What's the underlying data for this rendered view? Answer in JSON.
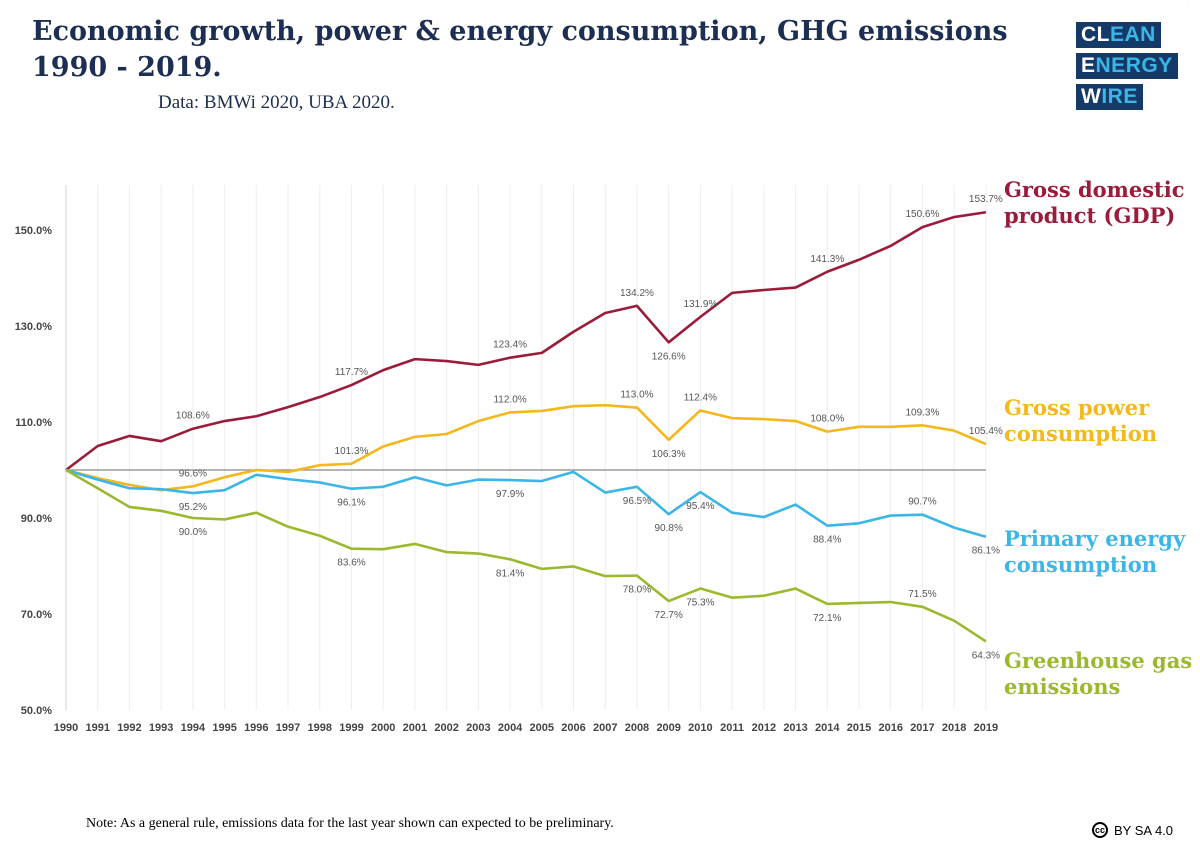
{
  "header": {
    "title": "Economic growth, power & energy consumption, GHG emissions 1990 - 2019.",
    "source": "Data: BMWi 2020, UBA 2020.",
    "logo": {
      "line1": "CLEAN",
      "line2": "ENERGY",
      "line3": "WIRE"
    }
  },
  "note": "Note: As a general rule, emissions data for the last year shown can expected to be preliminary.",
  "license": {
    "icon": "cc",
    "text": "BY SA 4.0"
  },
  "chart_data": {
    "type": "line",
    "title": "Economic growth, power & energy consumption, GHG emissions 1990 - 2019.",
    "xlabel": "",
    "ylabel": "",
    "ylim": [
      50,
      160
    ],
    "yticks": [
      "50.0%",
      "70.0%",
      "90.0%",
      "110.0%",
      "130.0%",
      "150.0%"
    ],
    "ytick_values": [
      50,
      70,
      90,
      110,
      130,
      150
    ],
    "baseline": 100,
    "x": [
      1990,
      1991,
      1992,
      1993,
      1994,
      1995,
      1996,
      1997,
      1998,
      1999,
      2000,
      2001,
      2002,
      2003,
      2004,
      2005,
      2006,
      2007,
      2008,
      2009,
      2010,
      2011,
      2012,
      2013,
      2014,
      2015,
      2016,
      2017,
      2018,
      2019
    ],
    "series": [
      {
        "name": "Gross domestic product (GDP)",
        "color": "#9b1b3a",
        "values": [
          100,
          105.0,
          107.1,
          106.0,
          108.6,
          110.2,
          111.2,
          113.1,
          115.2,
          117.7,
          120.8,
          123.1,
          122.7,
          121.9,
          123.4,
          124.4,
          128.8,
          132.7,
          134.2,
          126.6,
          131.9,
          136.9,
          137.5,
          138.0,
          141.3,
          143.8,
          146.7,
          150.6,
          152.7,
          153.7
        ],
        "labels": [
          {
            "year": 1994,
            "text": "108.6%",
            "pos": "above"
          },
          {
            "year": 1999,
            "text": "117.7%",
            "pos": "above"
          },
          {
            "year": 2004,
            "text": "123.4%",
            "pos": "above"
          },
          {
            "year": 2008,
            "text": "134.2%",
            "pos": "above"
          },
          {
            "year": 2009,
            "text": "126.6%",
            "pos": "below"
          },
          {
            "year": 2010,
            "text": "131.9%",
            "pos": "above"
          },
          {
            "year": 2014,
            "text": "141.3%",
            "pos": "above"
          },
          {
            "year": 2017,
            "text": "150.6%",
            "pos": "above"
          },
          {
            "year": 2019,
            "text": "153.7%",
            "pos": "above"
          }
        ]
      },
      {
        "name": "Gross power consumption",
        "color": "#f4b71c",
        "values": [
          100,
          98.3,
          96.9,
          95.8,
          96.6,
          98.5,
          100.0,
          99.6,
          101.0,
          101.3,
          104.9,
          106.9,
          107.5,
          110.2,
          112.0,
          112.3,
          113.3,
          113.5,
          113.0,
          106.3,
          112.4,
          110.8,
          110.6,
          110.2,
          108.0,
          109.0,
          109.0,
          109.3,
          108.2,
          105.4
        ],
        "labels": [
          {
            "year": 1994,
            "text": "96.6%",
            "pos": "above"
          },
          {
            "year": 1999,
            "text": "101.3%",
            "pos": "above"
          },
          {
            "year": 2004,
            "text": "112.0%",
            "pos": "above"
          },
          {
            "year": 2008,
            "text": "113.0%",
            "pos": "above"
          },
          {
            "year": 2009,
            "text": "106.3%",
            "pos": "below"
          },
          {
            "year": 2010,
            "text": "112.4%",
            "pos": "above"
          },
          {
            "year": 2014,
            "text": "108.0%",
            "pos": "above"
          },
          {
            "year": 2017,
            "text": "109.3%",
            "pos": "above"
          },
          {
            "year": 2019,
            "text": "105.4%",
            "pos": "above"
          }
        ]
      },
      {
        "name": "Primary energy consumption",
        "color": "#3bb6e6",
        "values": [
          100,
          98.0,
          96.2,
          96.0,
          95.2,
          95.8,
          99.0,
          98.1,
          97.4,
          96.1,
          96.5,
          98.5,
          96.8,
          98.0,
          97.9,
          97.7,
          99.6,
          95.3,
          96.5,
          90.8,
          95.4,
          91.1,
          90.2,
          92.8,
          88.4,
          88.9,
          90.5,
          90.7,
          88.0,
          86.1
        ],
        "labels": [
          {
            "year": 1994,
            "text": "95.2%",
            "pos": "below"
          },
          {
            "year": 1999,
            "text": "96.1%",
            "pos": "below"
          },
          {
            "year": 2004,
            "text": "97.9%",
            "pos": "below"
          },
          {
            "year": 2008,
            "text": "96.5%",
            "pos": "below"
          },
          {
            "year": 2009,
            "text": "90.8%",
            "pos": "below"
          },
          {
            "year": 2010,
            "text": "95.4%",
            "pos": "below"
          },
          {
            "year": 2014,
            "text": "88.4%",
            "pos": "below"
          },
          {
            "year": 2017,
            "text": "90.7%",
            "pos": "above"
          },
          {
            "year": 2019,
            "text": "86.1%",
            "pos": "below"
          }
        ]
      },
      {
        "name": "Greenhouse gas emissions",
        "color": "#9ab92e",
        "values": [
          100,
          96.2,
          92.3,
          91.5,
          90.0,
          89.7,
          91.1,
          88.2,
          86.3,
          83.6,
          83.5,
          84.6,
          82.9,
          82.6,
          81.4,
          79.4,
          79.9,
          77.9,
          78.0,
          72.7,
          75.3,
          73.4,
          73.8,
          75.3,
          72.1,
          72.3,
          72.5,
          71.5,
          68.6,
          64.3
        ],
        "labels": [
          {
            "year": 1994,
            "text": "90.0%",
            "pos": "below"
          },
          {
            "year": 1999,
            "text": "83.6%",
            "pos": "below"
          },
          {
            "year": 2004,
            "text": "81.4%",
            "pos": "below"
          },
          {
            "year": 2008,
            "text": "78.0%",
            "pos": "below"
          },
          {
            "year": 2009,
            "text": "72.7%",
            "pos": "below"
          },
          {
            "year": 2010,
            "text": "75.3%",
            "pos": "below"
          },
          {
            "year": 2014,
            "text": "72.1%",
            "pos": "below"
          },
          {
            "year": 2017,
            "text": "71.5%",
            "pos": "above"
          },
          {
            "year": 2019,
            "text": "64.3%",
            "pos": "below"
          }
        ]
      }
    ],
    "legend": {
      "placement": "right",
      "entries": [
        {
          "line1": "Gross domestic",
          "line2": "product (GDP)"
        },
        {
          "line1": "Gross power",
          "line2": "consumption"
        },
        {
          "line1": "Primary energy",
          "line2": "consumption"
        },
        {
          "line1": "Greenhouse gas",
          "line2": "emissions"
        }
      ]
    }
  }
}
